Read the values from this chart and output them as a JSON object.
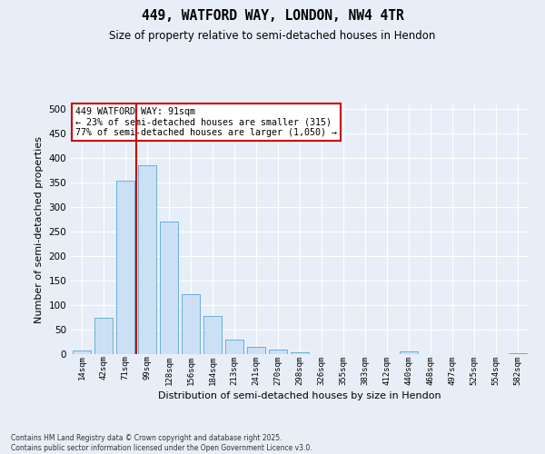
{
  "title_line1": "449, WATFORD WAY, LONDON, NW4 4TR",
  "title_line2": "Size of property relative to semi-detached houses in Hendon",
  "xlabel": "Distribution of semi-detached houses by size in Hendon",
  "ylabel": "Number of semi-detached properties",
  "categories": [
    "14sqm",
    "42sqm",
    "71sqm",
    "99sqm",
    "128sqm",
    "156sqm",
    "184sqm",
    "213sqm",
    "241sqm",
    "270sqm",
    "298sqm",
    "326sqm",
    "355sqm",
    "383sqm",
    "412sqm",
    "440sqm",
    "468sqm",
    "497sqm",
    "525sqm",
    "554sqm",
    "582sqm"
  ],
  "values": [
    8,
    75,
    355,
    385,
    270,
    122,
    78,
    30,
    15,
    10,
    3,
    0,
    0,
    0,
    0,
    5,
    0,
    0,
    0,
    0,
    2
  ],
  "bar_color": "#cce0f5",
  "bar_edge_color": "#6aaed6",
  "vline_x": 2.5,
  "vline_color": "#cc0000",
  "annotation_text": "449 WATFORD WAY: 91sqm\n← 23% of semi-detached houses are smaller (315)\n77% of semi-detached houses are larger (1,050) →",
  "annotation_box_color": "#ffffff",
  "annotation_box_edge": "#cc0000",
  "ylim": [
    0,
    510
  ],
  "yticks": [
    0,
    50,
    100,
    150,
    200,
    250,
    300,
    350,
    400,
    450,
    500
  ],
  "footnote": "Contains HM Land Registry data © Crown copyright and database right 2025.\nContains public sector information licensed under the Open Government Licence v3.0.",
  "bg_color": "#e8eef8",
  "plot_bg_color": "#e8eef8",
  "grid_color": "#ffffff",
  "fig_width": 6.0,
  "fig_height": 5.0,
  "dpi": 100
}
